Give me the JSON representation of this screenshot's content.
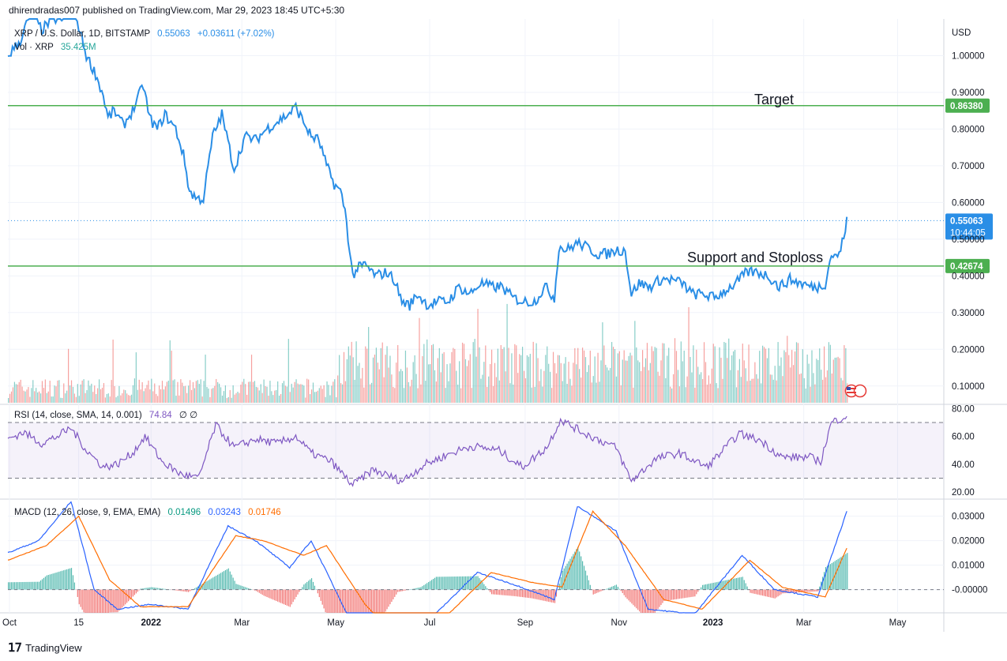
{
  "header": {
    "published": "dhirendradas007 published on TradingView.com, Mar 29, 2023 18:45 UTC+5:30"
  },
  "brand": {
    "name": "TradingView",
    "logo_icon": "tradingview-logo-icon"
  },
  "price_pane": {
    "legend_symbol": "XRP / U.S. Dollar, 1D, BITSTAMP",
    "legend_price": "0.55063",
    "legend_change": "+0.03611 (+7.02%)",
    "vol_label": "Vol · XRP",
    "vol_value": "35.425M",
    "currency": "USD",
    "last_price_label": "0.55063",
    "countdown": "10:44:05",
    "colors": {
      "price": "#2a8ee6",
      "line": "#4caf50",
      "vol_up": "#26a69a",
      "vol_down": "#ef5350"
    }
  },
  "annotations": {
    "target_text": "Target",
    "support_text": "Support and Stoploss",
    "target_level": 0.8638,
    "target_label": "0.86380",
    "support_level": 0.42674,
    "support_label": "0.42674"
  },
  "rsi_pane": {
    "legend_name": "RSI (14, close, SMA, 14, 0.001)",
    "legend_value": "74.84",
    "legend_extra": "∅ ∅",
    "upper_band": 70,
    "lower_band": 30,
    "color": "#7e57c2"
  },
  "macd_pane": {
    "legend_name": "MACD (12, 26, close, 9, EMA, EMA)",
    "legend_hist": "0.01496",
    "legend_macd": "0.03243",
    "legend_signal": "0.01746",
    "colors": {
      "hist_label": "#089981",
      "macd": "#2962ff",
      "signal": "#ff6d00"
    }
  },
  "chart_data": {
    "type": "line",
    "symbol": "XRP / U.S. Dollar, 1D, BITSTAMP",
    "x_axis_ticks": [
      "Oct",
      "15",
      "2022",
      "Mar",
      "May",
      "Jul",
      "Sep",
      "Nov",
      "2023",
      "Mar",
      "May"
    ],
    "price_axis": {
      "ticks": [
        "0.10000",
        "0.20000",
        "0.30000",
        "0.40000",
        "0.50000",
        "0.60000",
        "0.70000",
        "0.80000",
        "0.90000",
        "1.00000"
      ],
      "ylim": [
        0.05,
        1.1
      ]
    },
    "rsi_axis": {
      "ticks": [
        "20.00",
        "40.00",
        "60.00",
        "80.00"
      ],
      "ylim": [
        15,
        83
      ]
    },
    "macd_axis": {
      "ticks": [
        "-0.00000",
        "0.01000",
        "0.02000",
        "0.03000"
      ],
      "ylim": [
        -0.0095,
        0.037
      ]
    },
    "x_range": [
      "2021-09-30",
      "2023-05-31"
    ],
    "series": [
      {
        "name": "XRP / U.S. Dollar",
        "points": [
          [
            "2021-09-30",
            1.0
          ],
          [
            "2021-10-08",
            1.04
          ],
          [
            "2021-10-15",
            1.12
          ],
          [
            "2021-10-22",
            1.07
          ],
          [
            "2021-10-29",
            1.1
          ],
          [
            "2021-11-05",
            1.1
          ],
          [
            "2021-11-10",
            1.15
          ],
          [
            "2021-11-15",
            1.08
          ],
          [
            "2021-11-20",
            1.0
          ],
          [
            "2021-11-26",
            0.95
          ],
          [
            "2021-12-01",
            0.89
          ],
          [
            "2021-12-04",
            0.83
          ],
          [
            "2021-12-08",
            0.85
          ],
          [
            "2021-12-14",
            0.81
          ],
          [
            "2021-12-20",
            0.85
          ],
          [
            "2021-12-27",
            0.92
          ],
          [
            "2021-12-31",
            0.83
          ],
          [
            "2022-01-05",
            0.8
          ],
          [
            "2022-01-10",
            0.84
          ],
          [
            "2022-01-17",
            0.8
          ],
          [
            "2022-01-22",
            0.73
          ],
          [
            "2022-01-26",
            0.63
          ],
          [
            "2022-01-31",
            0.61
          ],
          [
            "2022-02-04",
            0.61
          ],
          [
            "2022-02-10",
            0.78
          ],
          [
            "2022-02-16",
            0.84
          ],
          [
            "2022-02-24",
            0.69
          ],
          [
            "2022-03-03",
            0.78
          ],
          [
            "2022-03-10",
            0.77
          ],
          [
            "2022-03-17",
            0.8
          ],
          [
            "2022-03-24",
            0.82
          ],
          [
            "2022-03-31",
            0.84
          ],
          [
            "2022-04-05",
            0.86
          ],
          [
            "2022-04-10",
            0.82
          ],
          [
            "2022-04-15",
            0.78
          ],
          [
            "2022-04-20",
            0.77
          ],
          [
            "2022-04-25",
            0.7
          ],
          [
            "2022-04-30",
            0.65
          ],
          [
            "2022-05-04",
            0.63
          ],
          [
            "2022-05-07",
            0.58
          ],
          [
            "2022-05-10",
            0.47
          ],
          [
            "2022-05-12",
            0.4
          ],
          [
            "2022-05-15",
            0.42
          ],
          [
            "2022-05-20",
            0.43
          ],
          [
            "2022-05-27",
            0.4
          ],
          [
            "2022-06-03",
            0.41
          ],
          [
            "2022-06-08",
            0.39
          ],
          [
            "2022-06-13",
            0.33
          ],
          [
            "2022-06-18",
            0.32
          ],
          [
            "2022-06-23",
            0.35
          ],
          [
            "2022-06-30",
            0.32
          ],
          [
            "2022-07-06",
            0.33
          ],
          [
            "2022-07-13",
            0.33
          ],
          [
            "2022-07-20",
            0.37
          ],
          [
            "2022-07-27",
            0.35
          ],
          [
            "2022-08-03",
            0.38
          ],
          [
            "2022-08-10",
            0.37
          ],
          [
            "2022-08-17",
            0.37
          ],
          [
            "2022-08-24",
            0.34
          ],
          [
            "2022-08-31",
            0.33
          ],
          [
            "2022-09-07",
            0.33
          ],
          [
            "2022-09-14",
            0.37
          ],
          [
            "2022-09-20",
            0.34
          ],
          [
            "2022-09-23",
            0.48
          ],
          [
            "2022-09-28",
            0.47
          ],
          [
            "2022-10-05",
            0.49
          ],
          [
            "2022-10-10",
            0.48
          ],
          [
            "2022-10-18",
            0.46
          ],
          [
            "2022-10-25",
            0.46
          ],
          [
            "2022-10-30",
            0.47
          ],
          [
            "2022-11-05",
            0.47
          ],
          [
            "2022-11-09",
            0.35
          ],
          [
            "2022-11-14",
            0.38
          ],
          [
            "2022-11-21",
            0.37
          ],
          [
            "2022-11-28",
            0.39
          ],
          [
            "2022-12-05",
            0.39
          ],
          [
            "2022-12-12",
            0.38
          ],
          [
            "2022-12-19",
            0.35
          ],
          [
            "2022-12-26",
            0.35
          ],
          [
            "2023-01-02",
            0.34
          ],
          [
            "2023-01-09",
            0.36
          ],
          [
            "2023-01-16",
            0.38
          ],
          [
            "2023-01-23",
            0.41
          ],
          [
            "2023-01-30",
            0.41
          ],
          [
            "2023-02-06",
            0.4
          ],
          [
            "2023-02-13",
            0.37
          ],
          [
            "2023-02-20",
            0.39
          ],
          [
            "2023-02-27",
            0.38
          ],
          [
            "2023-03-06",
            0.37
          ],
          [
            "2023-03-10",
            0.37
          ],
          [
            "2023-03-15",
            0.38
          ],
          [
            "2023-03-19",
            0.46
          ],
          [
            "2023-03-22",
            0.45
          ],
          [
            "2023-03-25",
            0.47
          ],
          [
            "2023-03-29",
            0.55
          ]
        ]
      },
      {
        "name": "RSI",
        "points": [
          [
            "2021-09-30",
            58
          ],
          [
            "2021-10-10",
            63
          ],
          [
            "2021-10-22",
            55
          ],
          [
            "2021-11-01",
            60
          ],
          [
            "2021-11-10",
            66
          ],
          [
            "2021-11-20",
            50
          ],
          [
            "2021-12-01",
            38
          ],
          [
            "2021-12-10",
            40
          ],
          [
            "2021-12-20",
            48
          ],
          [
            "2021-12-28",
            60
          ],
          [
            "2022-01-08",
            42
          ],
          [
            "2022-01-20",
            33
          ],
          [
            "2022-02-01",
            30
          ],
          [
            "2022-02-12",
            68
          ],
          [
            "2022-02-24",
            52
          ],
          [
            "2022-03-10",
            58
          ],
          [
            "2022-03-24",
            55
          ],
          [
            "2022-04-05",
            60
          ],
          [
            "2022-04-15",
            48
          ],
          [
            "2022-04-28",
            42
          ],
          [
            "2022-05-12",
            25
          ],
          [
            "2022-05-25",
            36
          ],
          [
            "2022-06-13",
            28
          ],
          [
            "2022-06-28",
            40
          ],
          [
            "2022-07-15",
            48
          ],
          [
            "2022-07-28",
            53
          ],
          [
            "2022-08-15",
            50
          ],
          [
            "2022-08-30",
            38
          ],
          [
            "2022-09-15",
            52
          ],
          [
            "2022-09-24",
            72
          ],
          [
            "2022-10-10",
            62
          ],
          [
            "2022-10-30",
            52
          ],
          [
            "2022-11-09",
            28
          ],
          [
            "2022-11-25",
            44
          ],
          [
            "2022-12-10",
            48
          ],
          [
            "2022-12-28",
            38
          ],
          [
            "2023-01-18",
            62
          ],
          [
            "2023-02-01",
            57
          ],
          [
            "2023-02-15",
            45
          ],
          [
            "2023-03-05",
            45
          ],
          [
            "2023-03-12",
            42
          ],
          [
            "2023-03-19",
            70
          ],
          [
            "2023-03-29",
            75
          ]
        ]
      },
      {
        "name": "MACD",
        "points": [
          [
            "2021-09-30",
            0.015
          ],
          [
            "2021-10-20",
            0.02
          ],
          [
            "2021-11-10",
            0.036
          ],
          [
            "2021-11-25",
            0.0
          ],
          [
            "2021-12-10",
            -0.008
          ],
          [
            "2022-01-01",
            -0.006
          ],
          [
            "2022-01-25",
            -0.008
          ],
          [
            "2022-02-20",
            0.026
          ],
          [
            "2022-03-10",
            0.02
          ],
          [
            "2022-04-01",
            0.009
          ],
          [
            "2022-04-15",
            0.02
          ],
          [
            "2022-05-10",
            -0.012
          ],
          [
            "2022-06-01",
            -0.024
          ],
          [
            "2022-06-25",
            -0.016
          ],
          [
            "2022-08-01",
            0.007
          ],
          [
            "2022-08-25",
            0.002
          ],
          [
            "2022-09-20",
            -0.004
          ],
          [
            "2022-10-05",
            0.034
          ],
          [
            "2022-10-30",
            0.024
          ],
          [
            "2022-11-20",
            -0.008
          ],
          [
            "2022-12-20",
            -0.01
          ],
          [
            "2023-01-20",
            0.014
          ],
          [
            "2023-02-10",
            0.0
          ],
          [
            "2023-03-10",
            -0.003
          ],
          [
            "2023-03-29",
            0.032
          ]
        ]
      },
      {
        "name": "Signal",
        "points": [
          [
            "2021-09-30",
            0.012
          ],
          [
            "2021-10-25",
            0.018
          ],
          [
            "2021-11-15",
            0.03
          ],
          [
            "2021-12-05",
            0.004
          ],
          [
            "2021-12-25",
            -0.007
          ],
          [
            "2022-01-25",
            -0.007
          ],
          [
            "2022-02-25",
            0.022
          ],
          [
            "2022-03-15",
            0.02
          ],
          [
            "2022-04-10",
            0.014
          ],
          [
            "2022-04-25",
            0.018
          ],
          [
            "2022-05-20",
            -0.006
          ],
          [
            "2022-06-10",
            -0.02
          ],
          [
            "2022-07-05",
            -0.015
          ],
          [
            "2022-08-10",
            0.007
          ],
          [
            "2022-09-05",
            0.003
          ],
          [
            "2022-09-25",
            0.001
          ],
          [
            "2022-10-15",
            0.032
          ],
          [
            "2022-11-05",
            0.018
          ],
          [
            "2022-11-30",
            -0.004
          ],
          [
            "2022-12-25",
            -0.008
          ],
          [
            "2023-01-25",
            0.012
          ],
          [
            "2023-02-15",
            0.001
          ],
          [
            "2023-03-15",
            -0.003
          ],
          [
            "2023-03-29",
            0.017
          ]
        ]
      }
    ]
  }
}
